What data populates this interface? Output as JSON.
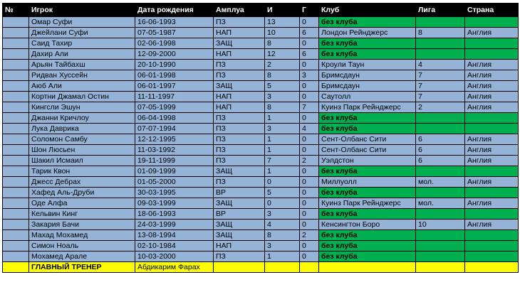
{
  "headers": [
    "№",
    "Игрок",
    "Дата рождения",
    "Амплуа",
    "И",
    "Г",
    "Клуб",
    "Лига",
    "Страна"
  ],
  "players": [
    {
      "name": "Омар Суфи",
      "dob": "16-06-1993",
      "pos": "ПЗ",
      "apps": "13",
      "goals": "0",
      "club": "без клуба",
      "league": "",
      "country": ""
    },
    {
      "name": "Джейлани Суфи",
      "dob": "07-05-1987",
      "pos": "НАП",
      "apps": "10",
      "goals": "6",
      "club": "Лондон Рейнджерс",
      "league": "8",
      "country": "Англия"
    },
    {
      "name": "Саид Тахир",
      "dob": "02-06-1998",
      "pos": "ЗАЩ",
      "apps": "8",
      "goals": "0",
      "club": "без клуба",
      "league": "",
      "country": ""
    },
    {
      "name": "Дахир Али",
      "dob": "12-09-2000",
      "pos": "НАП",
      "apps": "12",
      "goals": "6",
      "club": "без клуба",
      "league": "",
      "country": ""
    },
    {
      "name": "Арьян Тайбахш",
      "dob": "20-10-1990",
      "pos": "ПЗ",
      "apps": "2",
      "goals": "0",
      "club": "Кроули Таун",
      "league": "4",
      "country": "Англия"
    },
    {
      "name": "Ридван Хуссейн",
      "dob": "06-01-1998",
      "pos": "ПЗ",
      "apps": "8",
      "goals": "3",
      "club": "Бримсдаун",
      "league": "7",
      "country": "Англия"
    },
    {
      "name": "Аюб Али",
      "dob": "06-01-1997",
      "pos": "ЗАЩ",
      "apps": "5",
      "goals": "0",
      "club": "Бримсдаун",
      "league": "7",
      "country": "Англия"
    },
    {
      "name": "Кортни Джамал Остин",
      "dob": "11-11-1997",
      "pos": "НАП",
      "apps": "3",
      "goals": "0",
      "club": "Саутолл",
      "league": "7",
      "country": "Англия"
    },
    {
      "name": "Кингсли Эшун",
      "dob": "07-05-1999",
      "pos": "НАП",
      "apps": "8",
      "goals": "7",
      "club": "Куинз Парк Рейнджерс",
      "league": "2",
      "country": "Англия"
    },
    {
      "name": "Джанни Кричлоу",
      "dob": "06-04-1998",
      "pos": "ПЗ",
      "apps": "1",
      "goals": "0",
      "club": "без клуба",
      "league": "",
      "country": ""
    },
    {
      "name": "Лука Даврика",
      "dob": "07-07-1994",
      "pos": "ПЗ",
      "apps": "3",
      "goals": "4",
      "club": "без клуба",
      "league": "",
      "country": ""
    },
    {
      "name": "Соломон Самбу",
      "dob": "12-12-1995",
      "pos": "ПЗ",
      "apps": "1",
      "goals": "0",
      "club": "Сент-Олбанс Сити",
      "league": "6",
      "country": "Англия"
    },
    {
      "name": "Шон Люсьен",
      "dob": "11-03-1992",
      "pos": "ПЗ",
      "apps": "1",
      "goals": "0",
      "club": "Сент-Олбанс Сити",
      "league": "6",
      "country": "Англия"
    },
    {
      "name": "Шакил Исмаил",
      "dob": "19-11-1999",
      "pos": "ПЗ",
      "apps": "7",
      "goals": "2",
      "club": "Уэлдстон",
      "league": "6",
      "country": "Англия"
    },
    {
      "name": "Тарик Квон",
      "dob": "01-09-1999",
      "pos": "ЗАЩ",
      "apps": "1",
      "goals": "0",
      "club": "без клуба",
      "league": "",
      "country": ""
    },
    {
      "name": "Джесс Дебрах",
      "dob": "01-05-2000",
      "pos": "ПЗ",
      "apps": "0",
      "goals": "0",
      "club": "Миллуолл",
      "league": "мол.",
      "country": "Англия"
    },
    {
      "name": "Хафед Аль-Друби",
      "dob": "30-03-1995",
      "pos": "ВР",
      "apps": "5",
      "goals": "0",
      "club": "без клуба",
      "league": "",
      "country": ""
    },
    {
      "name": "Оде Алфа",
      "dob": "09-03-1999",
      "pos": "ЗАЩ",
      "apps": "0",
      "goals": "0",
      "club": "Куинз Парк Рейнджерс",
      "league": "мол.",
      "country": "Англия"
    },
    {
      "name": "Кельвин Кинг",
      "dob": "18-06-1993",
      "pos": "ВР",
      "apps": "3",
      "goals": "0",
      "club": "без клуба",
      "league": "",
      "country": ""
    },
    {
      "name": "Закария Бачи",
      "dob": "24-03-1999",
      "pos": "ЗАЩ",
      "apps": "4",
      "goals": "0",
      "club": "Кенсингтон Боро",
      "league": "10",
      "country": "Англия"
    },
    {
      "name": "Махад Мохамед",
      "dob": "13-08-1994",
      "pos": "ЗАЩ",
      "apps": "8",
      "goals": "2",
      "club": "без клуба",
      "league": "",
      "country": ""
    },
    {
      "name": "Симон Ноаль",
      "dob": "02-10-1984",
      "pos": "НАП",
      "apps": "3",
      "goals": "0",
      "club": "без клуба",
      "league": "",
      "country": ""
    },
    {
      "name": "Мохамед Арале",
      "dob": "10-03-2000",
      "pos": "ПЗ",
      "apps": "1",
      "goals": "0",
      "club": "без клуба",
      "league": "",
      "country": ""
    }
  ],
  "coach": {
    "label": "ГЛАВНЫЙ ТРЕНЕР",
    "name": "Абдикарим Фарах"
  },
  "colors": {
    "header": "#000000",
    "row": "#95b3d7",
    "free_agent": "#00b050",
    "coach_row": "#ffff00"
  }
}
